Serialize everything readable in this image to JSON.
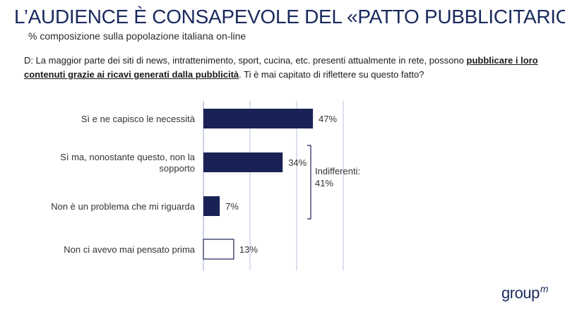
{
  "header": {
    "title": "L’AUDIENCE È CONSAPEVOLE DEL «PATTO PUBBLICITARIO»",
    "subtitle": "% composizione sulla popolazione italiana on-line"
  },
  "question": {
    "part1": "D: La maggior parte dei siti di news, intrattenimento, sport, cucina, etc. presenti attualmente in rete, possono",
    "highlight": "pubblicare i loro contenuti grazie ai ricavi generati dalla pubblicità",
    "part2": ". Ti è mai capitato di riflettere su questo fatto?"
  },
  "chart_data": {
    "type": "bar",
    "orientation": "horizontal",
    "categories": [
      [
        "Sì e ne capisco le necessità"
      ],
      [
        "Sì ma, nonostante questo, non la",
        "sopporto"
      ],
      [
        "Non è un problema che mi riguarda"
      ],
      [
        "Non ci avevo mai pensato prima"
      ]
    ],
    "values": [
      47,
      34,
      7,
      13
    ],
    "value_labels": [
      "47%",
      "34%",
      "7%",
      "13%"
    ],
    "bar_styles": [
      "filled",
      "filled",
      "filled",
      "outline"
    ],
    "xlim": [
      0,
      60
    ],
    "gridlines": [
      0,
      20,
      40,
      60
    ],
    "bracket": {
      "from_category": 1,
      "to_category": 2,
      "label": [
        "Indifferenti:",
        "41%"
      ]
    },
    "colors": {
      "bar": "#1a2255",
      "grid": "#b9c3dd"
    }
  },
  "logo": {
    "text": "group",
    "sup": "m"
  }
}
